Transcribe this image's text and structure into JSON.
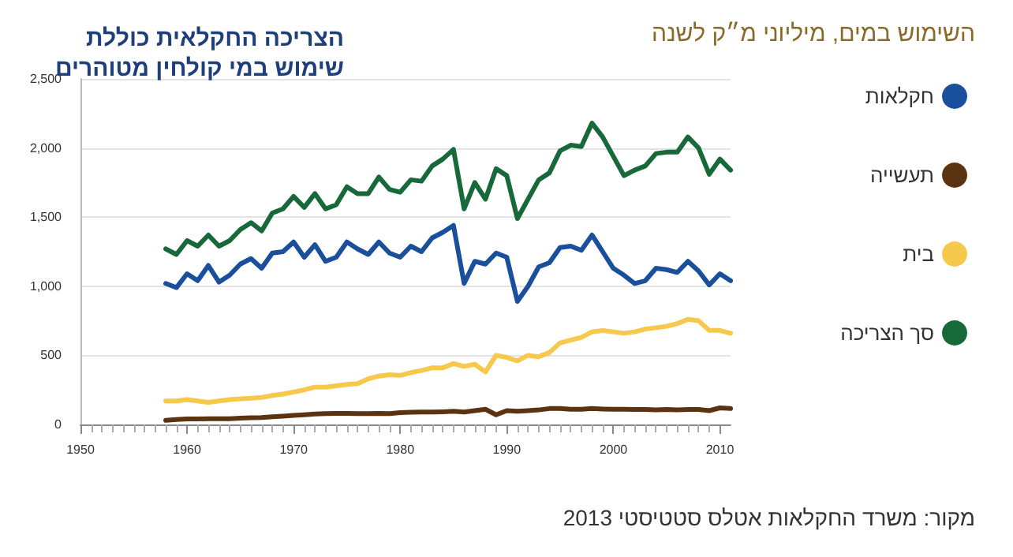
{
  "chart_data": {
    "type": "line",
    "title": "הצריכה החקלאית כוללת\nשימוש במי קולחין מטוהרים",
    "ylabel": "השימוש במים, מיליוני מ״ק לשנה",
    "annotations": [
      "מקור: משרד החקלאות אטלס סטטיסטי 2013"
    ],
    "x": [
      1958,
      1959,
      1960,
      1961,
      1962,
      1963,
      1964,
      1965,
      1966,
      1967,
      1968,
      1969,
      1970,
      1971,
      1972,
      1973,
      1974,
      1975,
      1976,
      1977,
      1978,
      1979,
      1980,
      1981,
      1982,
      1983,
      1984,
      1985,
      1986,
      1987,
      1988,
      1989,
      1990,
      1991,
      1992,
      1993,
      1994,
      1995,
      1996,
      1997,
      1998,
      1999,
      2000,
      2001,
      2002,
      2003,
      2004,
      2005,
      2006,
      2007,
      2008,
      2009,
      2010,
      2011
    ],
    "series": [
      {
        "name": "חקלאות",
        "color": "#1a4f9c",
        "values": [
          1020,
          990,
          1090,
          1040,
          1150,
          1030,
          1080,
          1160,
          1200,
          1130,
          1240,
          1250,
          1320,
          1210,
          1300,
          1180,
          1210,
          1320,
          1270,
          1230,
          1320,
          1240,
          1210,
          1290,
          1250,
          1350,
          1390,
          1440,
          1020,
          1180,
          1160,
          1240,
          1210,
          890,
          1000,
          1140,
          1170,
          1280,
          1290,
          1260,
          1370,
          1250,
          1130,
          1080,
          1020,
          1040,
          1130,
          1120,
          1100,
          1180,
          1110,
          1010,
          1090,
          1040
        ]
      },
      {
        "name": "תעשייה",
        "color": "#5c3310",
        "values": [
          30,
          35,
          40,
          40,
          42,
          42,
          42,
          45,
          48,
          50,
          55,
          60,
          65,
          70,
          75,
          78,
          80,
          80,
          78,
          78,
          80,
          78,
          85,
          88,
          90,
          90,
          92,
          95,
          90,
          100,
          110,
          70,
          100,
          95,
          100,
          105,
          115,
          115,
          110,
          110,
          115,
          112,
          110,
          110,
          108,
          108,
          105,
          108,
          105,
          108,
          108,
          100,
          120,
          115
        ]
      },
      {
        "name": "בית",
        "color": "#f6c84c",
        "values": [
          170,
          170,
          180,
          170,
          160,
          170,
          180,
          185,
          190,
          195,
          210,
          220,
          235,
          250,
          270,
          270,
          280,
          290,
          295,
          330,
          350,
          360,
          355,
          375,
          390,
          410,
          410,
          440,
          420,
          435,
          380,
          500,
          485,
          460,
          500,
          490,
          520,
          590,
          610,
          630,
          670,
          680,
          670,
          660,
          670,
          690,
          700,
          710,
          730,
          760,
          750,
          680,
          680,
          660
        ]
      },
      {
        "name": "סך הצריכה",
        "color": "#17693a",
        "values": [
          1270,
          1230,
          1330,
          1290,
          1370,
          1290,
          1330,
          1410,
          1460,
          1400,
          1530,
          1560,
          1650,
          1570,
          1670,
          1560,
          1590,
          1720,
          1670,
          1670,
          1790,
          1700,
          1680,
          1770,
          1760,
          1870,
          1920,
          1990,
          1560,
          1750,
          1630,
          1850,
          1800,
          1490,
          1630,
          1770,
          1820,
          1980,
          2020,
          2010,
          2180,
          2080,
          1940,
          1800,
          1840,
          1870,
          1960,
          1970,
          1970,
          2080,
          2000,
          1810,
          1920,
          1840
        ]
      }
    ],
    "xlim": [
      1950,
      2011
    ],
    "xticks": [
      1950,
      1960,
      1970,
      1980,
      1990,
      2000,
      2010
    ],
    "ylim": [
      0,
      2500
    ],
    "yticks": [
      0,
      {
        "value": 500,
        "label": "500"
      },
      {
        "value": 1000,
        "label": "1,000"
      },
      {
        "value": 1500,
        "label": "1,500"
      },
      {
        "value": 2000,
        "label": "2,000"
      },
      {
        "value": 2500,
        "label": "2,500"
      }
    ],
    "grid": "y",
    "legend": "right",
    "marker": "none",
    "line_style": "solid"
  }
}
